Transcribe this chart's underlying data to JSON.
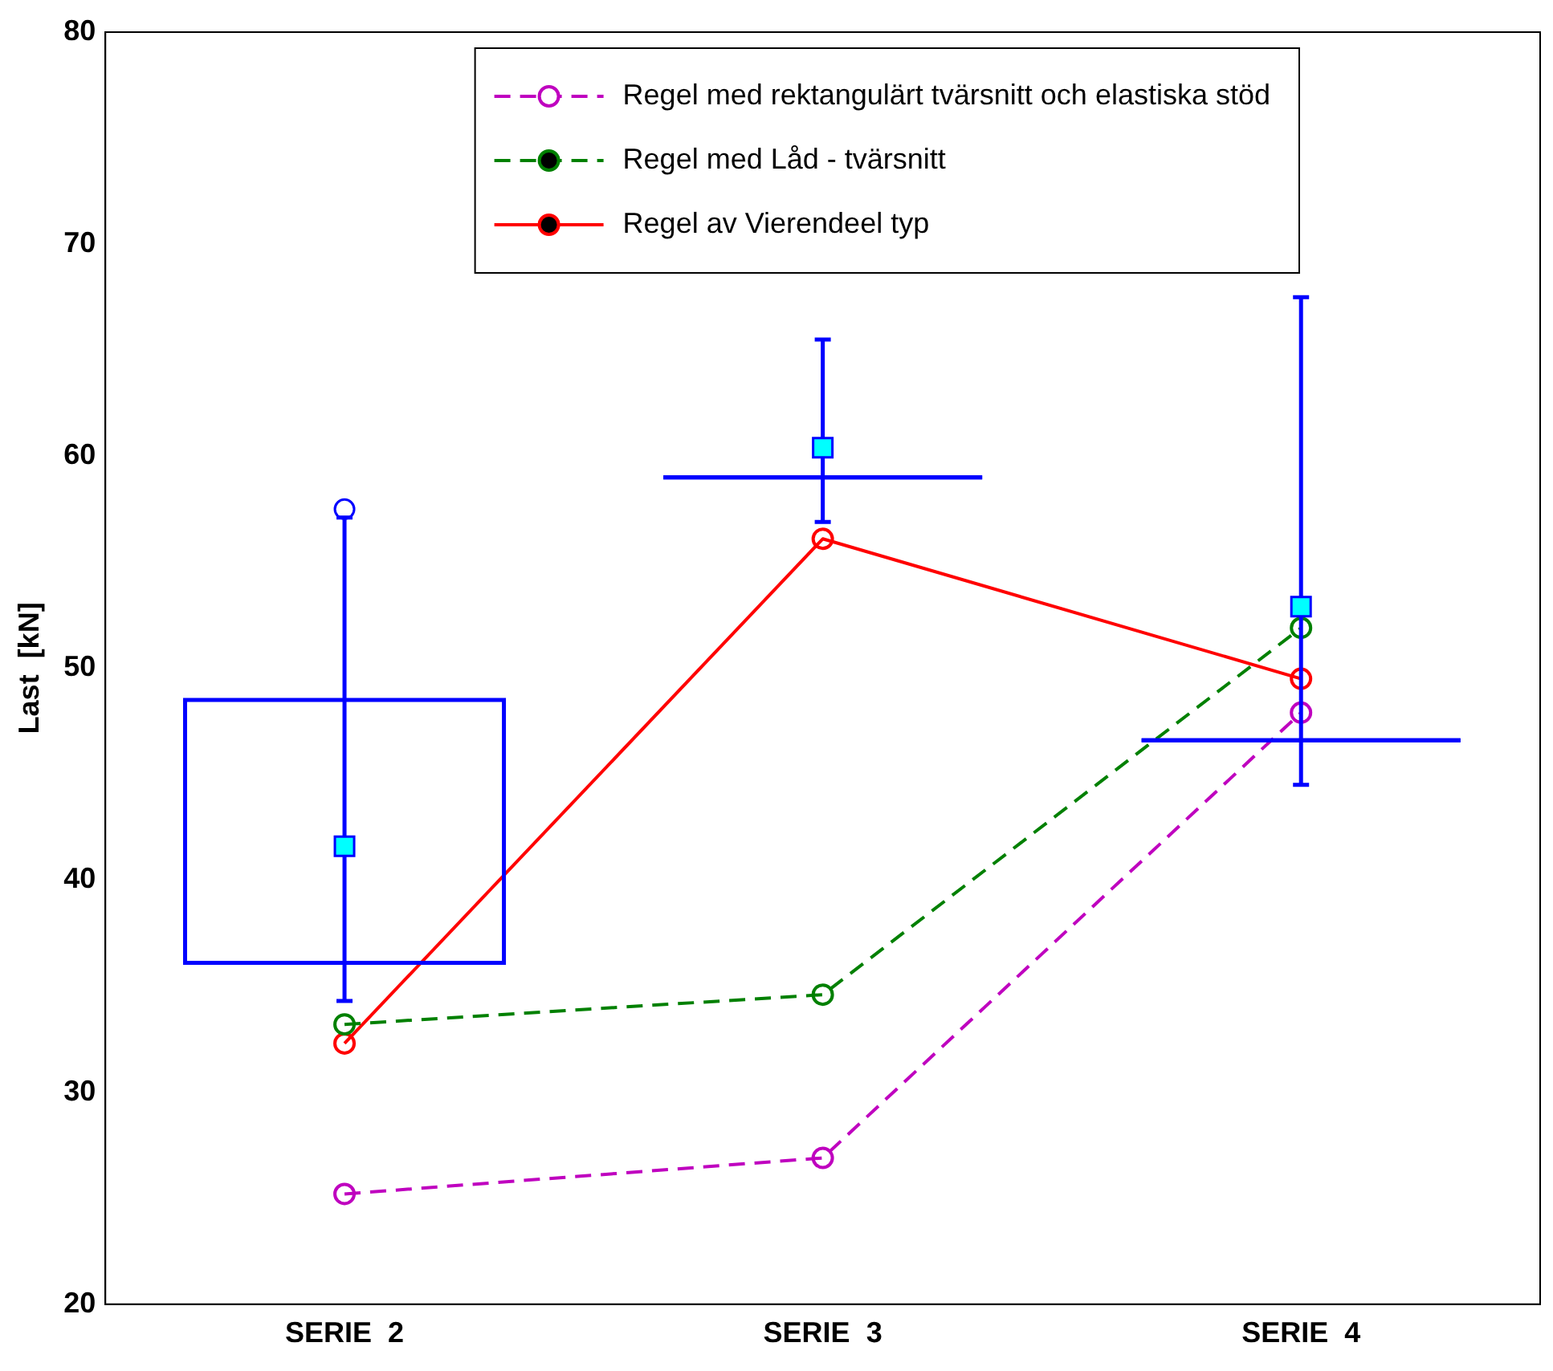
{
  "chart_data": {
    "type": "line",
    "ylabel": "Last  [kN]",
    "categories": [
      "SERIE  2",
      "SERIE  3",
      "SERIE  4"
    ],
    "ylim": [
      20,
      80
    ],
    "yticks": [
      20,
      30,
      40,
      50,
      60,
      70,
      80
    ],
    "grid": false,
    "legend": "top right",
    "marker": "circle",
    "series": [
      {
        "type": "box",
        "color": "#0000ff",
        "boxes": [
          {
            "low": 34.3,
            "q1": 36.1,
            "median": 36.1,
            "q3": 48.5,
            "high": 57.1,
            "mean": 41.6,
            "outliers": [
              57.5
            ]
          },
          {
            "low": 56.9,
            "q1": 59.0,
            "median": 59.0,
            "q3": 59.0,
            "high": 65.5,
            "mean": 60.4
          },
          {
            "low": 44.5,
            "q1": 46.6,
            "median": 46.6,
            "q3": 46.6,
            "high": 67.5,
            "mean": 52.9
          }
        ]
      },
      {
        "name": "Regel med rektangulärt tvärsnitt och elastiska stöd",
        "color": "#bf00bf",
        "line_style": "dashed",
        "values": [
          25.2,
          26.9,
          47.9
        ]
      },
      {
        "name": "Regel med Låd - tvärsnitt",
        "color": "#008000",
        "line_style": "dashed",
        "values": [
          33.2,
          34.6,
          51.9
        ]
      },
      {
        "name": "Regel av Vierendeel typ",
        "color": "#ff0000",
        "line_style": "solid",
        "values": [
          32.3,
          56.1,
          49.5
        ]
      }
    ]
  }
}
